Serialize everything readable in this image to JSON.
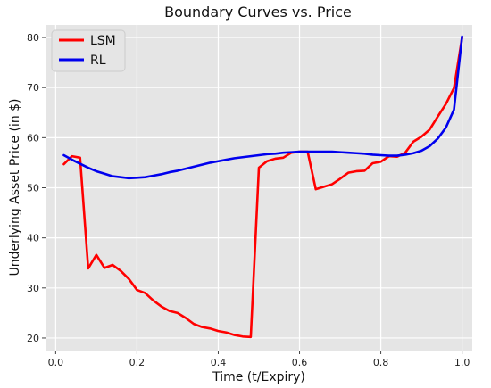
{
  "chart_data": {
    "type": "line",
    "title": "Boundary Curves vs. Price",
    "xlabel": "Time (t/Expiry)",
    "ylabel": "Underlying Asset Price (in $)",
    "xlim": [
      -0.025,
      1.025
    ],
    "ylim": [
      17.5,
      82.5
    ],
    "xticks": [
      0.0,
      0.2,
      0.4,
      0.6,
      0.8,
      1.0
    ],
    "xtick_labels": [
      "0.0",
      "0.2",
      "0.4",
      "0.6",
      "0.8",
      "1.0"
    ],
    "yticks": [
      20,
      30,
      40,
      50,
      60,
      70,
      80
    ],
    "ytick_labels": [
      "20",
      "30",
      "40",
      "50",
      "60",
      "70",
      "80"
    ],
    "grid": true,
    "legend_position": "top-left",
    "series": [
      {
        "name": "LSM",
        "color": "#ff0000",
        "points": [
          [
            0.02,
            54.7
          ],
          [
            0.04,
            56.3
          ],
          [
            0.06,
            56.0
          ],
          [
            0.08,
            33.9
          ],
          [
            0.1,
            36.6
          ],
          [
            0.12,
            34.0
          ],
          [
            0.14,
            34.6
          ],
          [
            0.16,
            33.4
          ],
          [
            0.18,
            31.8
          ],
          [
            0.2,
            29.6
          ],
          [
            0.22,
            29.0
          ],
          [
            0.24,
            27.5
          ],
          [
            0.26,
            26.3
          ],
          [
            0.28,
            25.4
          ],
          [
            0.3,
            25.0
          ],
          [
            0.32,
            24.0
          ],
          [
            0.34,
            22.8
          ],
          [
            0.36,
            22.2
          ],
          [
            0.38,
            21.9
          ],
          [
            0.4,
            21.4
          ],
          [
            0.42,
            21.1
          ],
          [
            0.44,
            20.6
          ],
          [
            0.46,
            20.3
          ],
          [
            0.48,
            20.2
          ],
          [
            0.5,
            54.0
          ],
          [
            0.52,
            55.3
          ],
          [
            0.54,
            55.8
          ],
          [
            0.56,
            56.0
          ],
          [
            0.58,
            57.0
          ],
          [
            0.6,
            57.2
          ],
          [
            0.62,
            57.2
          ],
          [
            0.64,
            49.7
          ],
          [
            0.66,
            50.2
          ],
          [
            0.68,
            50.7
          ],
          [
            0.7,
            51.8
          ],
          [
            0.72,
            53.0
          ],
          [
            0.74,
            53.3
          ],
          [
            0.76,
            53.4
          ],
          [
            0.78,
            54.9
          ],
          [
            0.8,
            55.2
          ],
          [
            0.82,
            56.3
          ],
          [
            0.84,
            56.2
          ],
          [
            0.86,
            57.0
          ],
          [
            0.88,
            59.2
          ],
          [
            0.9,
            60.2
          ],
          [
            0.92,
            61.6
          ],
          [
            0.94,
            64.2
          ],
          [
            0.96,
            66.7
          ],
          [
            0.98,
            69.9
          ],
          [
            1.0,
            80.0
          ]
        ]
      },
      {
        "name": "RL",
        "color": "#0000ee",
        "points": [
          [
            0.02,
            56.5
          ],
          [
            0.04,
            55.6
          ],
          [
            0.06,
            54.8
          ],
          [
            0.08,
            54.0
          ],
          [
            0.1,
            53.3
          ],
          [
            0.12,
            52.8
          ],
          [
            0.14,
            52.3
          ],
          [
            0.16,
            52.1
          ],
          [
            0.18,
            51.9
          ],
          [
            0.2,
            52.0
          ],
          [
            0.22,
            52.1
          ],
          [
            0.24,
            52.4
          ],
          [
            0.26,
            52.7
          ],
          [
            0.28,
            53.1
          ],
          [
            0.3,
            53.4
          ],
          [
            0.32,
            53.8
          ],
          [
            0.34,
            54.2
          ],
          [
            0.36,
            54.6
          ],
          [
            0.38,
            55.0
          ],
          [
            0.4,
            55.3
          ],
          [
            0.42,
            55.6
          ],
          [
            0.44,
            55.9
          ],
          [
            0.46,
            56.1
          ],
          [
            0.48,
            56.3
          ],
          [
            0.5,
            56.5
          ],
          [
            0.52,
            56.7
          ],
          [
            0.54,
            56.8
          ],
          [
            0.56,
            57.0
          ],
          [
            0.58,
            57.1
          ],
          [
            0.6,
            57.2
          ],
          [
            0.62,
            57.2
          ],
          [
            0.64,
            57.2
          ],
          [
            0.66,
            57.2
          ],
          [
            0.68,
            57.2
          ],
          [
            0.7,
            57.1
          ],
          [
            0.72,
            57.0
          ],
          [
            0.74,
            56.9
          ],
          [
            0.76,
            56.8
          ],
          [
            0.78,
            56.6
          ],
          [
            0.8,
            56.5
          ],
          [
            0.82,
            56.4
          ],
          [
            0.84,
            56.4
          ],
          [
            0.86,
            56.6
          ],
          [
            0.88,
            56.9
          ],
          [
            0.9,
            57.4
          ],
          [
            0.92,
            58.3
          ],
          [
            0.94,
            59.8
          ],
          [
            0.96,
            62.0
          ],
          [
            0.98,
            65.6
          ],
          [
            1.0,
            80.2
          ]
        ]
      }
    ]
  }
}
